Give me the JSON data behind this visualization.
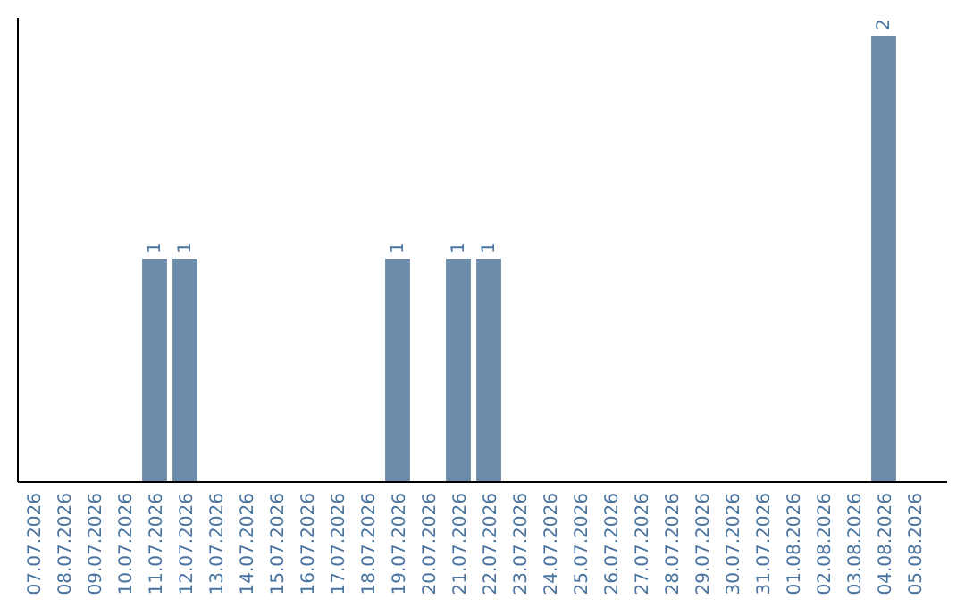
{
  "chart_data": {
    "type": "bar",
    "categories": [
      "07.07.2026",
      "08.07.2026",
      "09.07.2026",
      "10.07.2026",
      "11.07.2026",
      "12.07.2026",
      "13.07.2026",
      "14.07.2026",
      "15.07.2026",
      "16.07.2026",
      "17.07.2026",
      "18.07.2026",
      "19.07.2026",
      "20.07.2026",
      "21.07.2026",
      "22.07.2026",
      "23.07.2026",
      "24.07.2026",
      "25.07.2026",
      "26.07.2026",
      "27.07.2026",
      "28.07.2026",
      "29.07.2026",
      "30.07.2026",
      "31.07.2026",
      "01.08.2026",
      "02.08.2026",
      "03.08.2026",
      "04.08.2026",
      "05.08.2026"
    ],
    "values": [
      0,
      0,
      0,
      0,
      1,
      1,
      0,
      0,
      0,
      0,
      0,
      0,
      1,
      0,
      1,
      1,
      0,
      0,
      0,
      0,
      0,
      0,
      0,
      0,
      0,
      0,
      0,
      0,
      2,
      0
    ],
    "value_labels": [
      null,
      null,
      null,
      null,
      "1",
      "1",
      null,
      null,
      null,
      null,
      null,
      null,
      "1",
      null,
      "1",
      "1",
      null,
      null,
      null,
      null,
      null,
      null,
      null,
      null,
      null,
      null,
      null,
      null,
      "2",
      null
    ],
    "color": "#6b8cab",
    "tick_labels": "x"
  }
}
